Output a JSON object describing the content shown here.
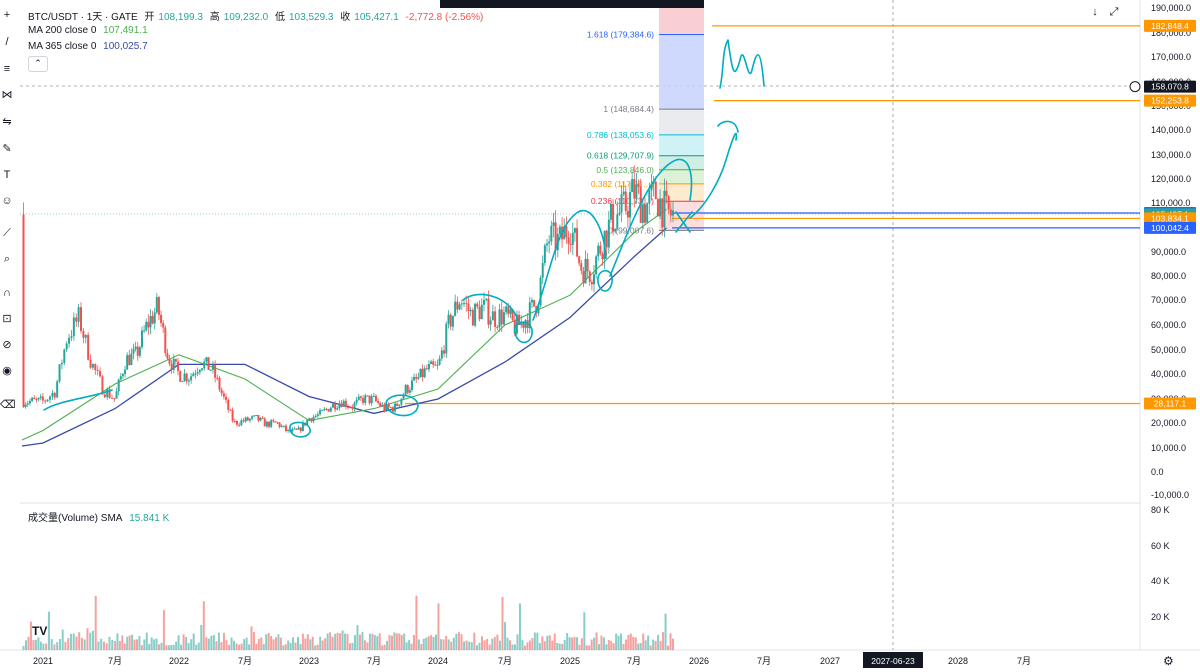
{
  "header": {
    "symbol": "BTC/USDT · 1天 · GATE",
    "open_label": "开",
    "open": "108,199.3",
    "high_label": "高",
    "high": "109,232.0",
    "low_label": "低",
    "low": "103,529.3",
    "close_label": "收",
    "close": "105,427.1",
    "change": "-2,772.8 (-2.56%)"
  },
  "indicators": [
    {
      "label": "MA 200 close 0",
      "value": "107,491.1",
      "color": "#4caf50"
    },
    {
      "label": "MA 365 close 0",
      "value": "100,025.7",
      "color": "#3949ab"
    }
  ],
  "volume_legend": {
    "label": "成交量(Volume) SMA",
    "value": "15.841 K"
  },
  "toolbar_icons": [
    "crosshair-icon",
    "trend-line-icon",
    "fib-icon",
    "brush-icon",
    "text-icon",
    "emoji-icon",
    "ruler-icon",
    "zoom-icon",
    "magnet-icon",
    "lock-icon",
    "hide-icon",
    "eye-icon",
    "trash-icon"
  ],
  "nav": {
    "down": "↓",
    "expand": "⤢"
  },
  "tv_logo": "TV",
  "settings_icon": "⚙",
  "colors": {
    "up": "#26a69a",
    "down": "#ef5350",
    "ma200": "#4caf50",
    "ma365": "#3949ab",
    "orange_line": "#ff9800",
    "blue_line": "#2962ff",
    "drawing": "#00acc1",
    "crosshair_badge": "#131722"
  },
  "chart_data": {
    "type": "candlestick",
    "title": "BTC/USDT · 1天 · GATE",
    "y_axis": {
      "ticks": [
        "190,000.0",
        "180,000.0",
        "170,000.0",
        "160,000.0",
        "150,000.0",
        "140,000.0",
        "130,000.0",
        "120,000.0",
        "110,000.0",
        "100,000.0",
        "90,000.0",
        "80,000.0",
        "70,000.0",
        "60,000.0",
        "50,000.0",
        "40,000.0",
        "30,000.0",
        "20,000.0",
        "10,000.0",
        "0.0",
        "-10,000.0"
      ],
      "log_scale": true
    },
    "volume_axis": {
      "ticks": [
        "80 K",
        "60 K",
        "40 K",
        "20 K"
      ]
    },
    "x_axis": {
      "ticks": [
        "2021",
        "7月",
        "2022",
        "7月",
        "2023",
        "7月",
        "2024",
        "7月",
        "2025",
        "7月",
        "2026",
        "7月",
        "2027",
        "2027-06-23",
        "2028",
        "7月"
      ]
    },
    "price_path": [
      {
        "date": "2021-01",
        "value": 29000
      },
      {
        "date": "2021-02",
        "value": 33000
      },
      {
        "date": "2021-03",
        "value": 55000
      },
      {
        "date": "2021-04",
        "value": 63000
      },
      {
        "date": "2021-05",
        "value": 45000
      },
      {
        "date": "2021-06",
        "value": 34000
      },
      {
        "date": "2021-07",
        "value": 30000
      },
      {
        "date": "2021-08",
        "value": 46000
      },
      {
        "date": "2021-09",
        "value": 48000
      },
      {
        "date": "2021-10",
        "value": 60000
      },
      {
        "date": "2021-11",
        "value": 67000
      },
      {
        "date": "2021-12",
        "value": 47000
      },
      {
        "date": "2022-01",
        "value": 40000
      },
      {
        "date": "2022-02",
        "value": 39000
      },
      {
        "date": "2022-03",
        "value": 45000
      },
      {
        "date": "2022-04",
        "value": 42000
      },
      {
        "date": "2022-05",
        "value": 31000
      },
      {
        "date": "2022-06",
        "value": 20000
      },
      {
        "date": "2022-07",
        "value": 21000
      },
      {
        "date": "2022-08",
        "value": 22000
      },
      {
        "date": "2022-09",
        "value": 19500
      },
      {
        "date": "2022-10",
        "value": 20000
      },
      {
        "date": "2022-11",
        "value": 16500
      },
      {
        "date": "2022-12",
        "value": 16800
      },
      {
        "date": "2023-01",
        "value": 22000
      },
      {
        "date": "2023-02",
        "value": 23500
      },
      {
        "date": "2023-03",
        "value": 27000
      },
      {
        "date": "2023-04",
        "value": 29000
      },
      {
        "date": "2023-05",
        "value": 27000
      },
      {
        "date": "2023-06",
        "value": 30000
      },
      {
        "date": "2023-07",
        "value": 29500
      },
      {
        "date": "2023-08",
        "value": 26000
      },
      {
        "date": "2023-09",
        "value": 26500
      },
      {
        "date": "2023-10",
        "value": 34000
      },
      {
        "date": "2023-11",
        "value": 37500
      },
      {
        "date": "2023-12",
        "value": 42000
      },
      {
        "date": "2024-01",
        "value": 42500
      },
      {
        "date": "2024-02",
        "value": 61000
      },
      {
        "date": "2024-03",
        "value": 71000
      },
      {
        "date": "2024-04",
        "value": 64000
      },
      {
        "date": "2024-05",
        "value": 67000
      },
      {
        "date": "2024-06",
        "value": 63000
      },
      {
        "date": "2024-07",
        "value": 64000
      },
      {
        "date": "2024-08",
        "value": 59000
      },
      {
        "date": "2024-09",
        "value": 63000
      },
      {
        "date": "2024-10",
        "value": 70000
      },
      {
        "date": "2024-11",
        "value": 96000
      },
      {
        "date": "2024-12",
        "value": 94000
      },
      {
        "date": "2025-01",
        "value": 102000
      },
      {
        "date": "2025-02",
        "value": 84000
      },
      {
        "date": "2025-03",
        "value": 82000
      },
      {
        "date": "2025-04",
        "value": 94000
      },
      {
        "date": "2025-05",
        "value": 104000
      },
      {
        "date": "2025-06",
        "value": 107000
      },
      {
        "date": "2025-07",
        "value": 115000
      },
      {
        "date": "2025-08",
        "value": 108000
      },
      {
        "date": "2025-09",
        "value": 114000
      },
      {
        "date": "2025-10",
        "value": 105427
      }
    ],
    "fib_levels": [
      {
        "label": "1.618 (179,384.6)",
        "value": 179384.6,
        "color": "#2962ff"
      },
      {
        "label": "1 (148,684.4)",
        "value": 148684.4,
        "color": "#787b86"
      },
      {
        "label": "0.786 (138,053.6)",
        "value": 138053.6,
        "color": "#00bcd4"
      },
      {
        "label": "0.618 (129,707.9)",
        "value": 129707.9,
        "color": "#089981"
      },
      {
        "label": "0.5 (123,846.0)",
        "value": 123846.0,
        "color": "#4caf50"
      },
      {
        "label": "0.382 (117,98…)",
        "value": 117984.1,
        "color": "#ff9800"
      },
      {
        "label": "0.236 (110,73…)",
        "value": 110731.3,
        "color": "#f23645"
      },
      {
        "label": "0 (99,007.6)",
        "value": 99007.6,
        "color": "#787b86"
      }
    ],
    "horizontal_lines": [
      {
        "label": "182,848.4",
        "value": 182848.4,
        "color": "#ff9800"
      },
      {
        "label": "152,253.8",
        "value": 152253.8,
        "color": "#ff9800"
      },
      {
        "label": "106,000.8",
        "value": 106000.8,
        "color": "#2962ff"
      },
      {
        "label": "103,834.1",
        "value": 103834.1,
        "color": "#ff9800"
      },
      {
        "label": "100,042.4",
        "value": 100042.4,
        "color": "#2962ff"
      },
      {
        "label": "28,117.1",
        "value": 28117.1,
        "color": "#ff9800"
      }
    ],
    "price_badges": [
      {
        "label": "182,848.4",
        "value": 182848.4,
        "color": "#ff9800"
      },
      {
        "label": "158,070.8",
        "value": 158070.8,
        "color": "#131722"
      },
      {
        "label": "152,253.8",
        "value": 152253.8,
        "color": "#ff9800"
      },
      {
        "label": "106,000.8",
        "value": 106000.8,
        "color": "#2962ff"
      },
      {
        "label": "105,427.1",
        "value": 105427.1,
        "color": "#26a69a"
      },
      {
        "label": "103,834.1",
        "value": 103834.1,
        "color": "#ff9800"
      },
      {
        "label": "100,042.4",
        "value": 100042.4,
        "color": "#2962ff"
      },
      {
        "label": "28,117.1",
        "value": 28117.1,
        "color": "#ff9800"
      }
    ],
    "ma200": [
      {
        "date": "2021-01",
        "value": 17000
      },
      {
        "date": "2021-07",
        "value": 36000
      },
      {
        "date": "2022-01",
        "value": 48000
      },
      {
        "date": "2022-07",
        "value": 38000
      },
      {
        "date": "2023-01",
        "value": 21000
      },
      {
        "date": "2023-07",
        "value": 26000
      },
      {
        "date": "2024-01",
        "value": 34000
      },
      {
        "date": "2024-07",
        "value": 60000
      },
      {
        "date": "2025-01",
        "value": 72000
      },
      {
        "date": "2025-07",
        "value": 98000
      },
      {
        "date": "2025-10",
        "value": 107491
      }
    ],
    "ma365": [
      {
        "date": "2021-01",
        "value": 12000
      },
      {
        "date": "2021-07",
        "value": 26000
      },
      {
        "date": "2022-01",
        "value": 44000
      },
      {
        "date": "2022-07",
        "value": 44000
      },
      {
        "date": "2023-01",
        "value": 31000
      },
      {
        "date": "2023-07",
        "value": 24000
      },
      {
        "date": "2024-01",
        "value": 30000
      },
      {
        "date": "2024-07",
        "value": 45000
      },
      {
        "date": "2025-01",
        "value": 63000
      },
      {
        "date": "2025-07",
        "value": 88000
      },
      {
        "date": "2025-10",
        "value": 100026
      }
    ]
  }
}
